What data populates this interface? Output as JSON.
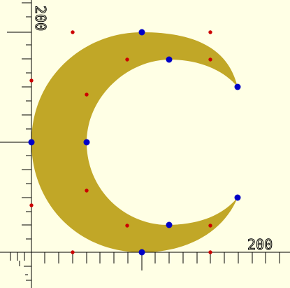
{
  "axis_labels": {
    "y_max": "200",
    "x_max": "200"
  },
  "colors": {
    "background": "#ffffe5",
    "shape_fill": "#c1a727",
    "axis_line": "#000000",
    "control_point_major": "#0000c6",
    "control_point_minor": "#cc0000"
  },
  "icons": {
    "major_point": "blue-dot-icon",
    "minor_point": "red-dot-icon"
  }
}
